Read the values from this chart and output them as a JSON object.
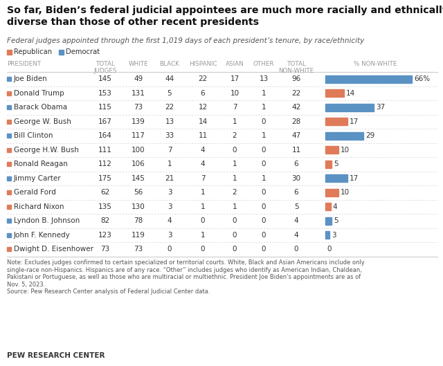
{
  "title": "So far, Biden’s federal judicial appointees are much more racially and ethnically\ndiverse than those of other recent presidents",
  "subtitle": "Federal judges appointed through the first 1,019 days of each president’s tenure, by race/ethnicity",
  "note": "Note: Excludes judges confirmed to certain specialized or territorial courts. White, Black and Asian Americans include only\nsingle-race non-Hispanics. Hispanics are of any race. “Other” includes judges who identify as American Indian, Chaldean,\nPakistani or Portuguese, as well as those who are multiracial or multiethnic. President Joe Biden’s appointments are as of\nNov. 5, 2023.",
  "source": "Source: Pew Research Center analysis of Federal Judicial Center data.",
  "footer": "PEW RESEARCH CENTER",
  "presidents": [
    {
      "name": "Joe Biden",
      "party": "D",
      "total": 145,
      "white": 49,
      "black": 44,
      "hispanic": 22,
      "asian": 17,
      "other": 13,
      "total_nw": 96,
      "pct_nw": 66
    },
    {
      "name": "Donald Trump",
      "party": "R",
      "total": 153,
      "white": 131,
      "black": 5,
      "hispanic": 6,
      "asian": 10,
      "other": 1,
      "total_nw": 22,
      "pct_nw": 14
    },
    {
      "name": "Barack Obama",
      "party": "D",
      "total": 115,
      "white": 73,
      "black": 22,
      "hispanic": 12,
      "asian": 7,
      "other": 1,
      "total_nw": 42,
      "pct_nw": 37
    },
    {
      "name": "George W. Bush",
      "party": "R",
      "total": 167,
      "white": 139,
      "black": 13,
      "hispanic": 14,
      "asian": 1,
      "other": 0,
      "total_nw": 28,
      "pct_nw": 17
    },
    {
      "name": "Bill Clinton",
      "party": "D",
      "total": 164,
      "white": 117,
      "black": 33,
      "hispanic": 11,
      "asian": 2,
      "other": 1,
      "total_nw": 47,
      "pct_nw": 29
    },
    {
      "name": "George H.W. Bush",
      "party": "R",
      "total": 111,
      "white": 100,
      "black": 7,
      "hispanic": 4,
      "asian": 0,
      "other": 0,
      "total_nw": 11,
      "pct_nw": 10
    },
    {
      "name": "Ronald Reagan",
      "party": "R",
      "total": 112,
      "white": 106,
      "black": 1,
      "hispanic": 4,
      "asian": 1,
      "other": 0,
      "total_nw": 6,
      "pct_nw": 5
    },
    {
      "name": "Jimmy Carter",
      "party": "D",
      "total": 175,
      "white": 145,
      "black": 21,
      "hispanic": 7,
      "asian": 1,
      "other": 1,
      "total_nw": 30,
      "pct_nw": 17
    },
    {
      "name": "Gerald Ford",
      "party": "R",
      "total": 62,
      "white": 56,
      "black": 3,
      "hispanic": 1,
      "asian": 2,
      "other": 0,
      "total_nw": 6,
      "pct_nw": 10
    },
    {
      "name": "Richard Nixon",
      "party": "R",
      "total": 135,
      "white": 130,
      "black": 3,
      "hispanic": 1,
      "asian": 1,
      "other": 0,
      "total_nw": 5,
      "pct_nw": 4
    },
    {
      "name": "Lyndon B. Johnson",
      "party": "D",
      "total": 82,
      "white": 78,
      "black": 4,
      "hispanic": 0,
      "asian": 0,
      "other": 0,
      "total_nw": 4,
      "pct_nw": 5
    },
    {
      "name": "John F. Kennedy",
      "party": "D",
      "total": 123,
      "white": 119,
      "black": 3,
      "hispanic": 1,
      "asian": 0,
      "other": 0,
      "total_nw": 4,
      "pct_nw": 3
    },
    {
      "name": "Dwight D. Eisenhower",
      "party": "R",
      "total": 73,
      "white": 73,
      "black": 0,
      "hispanic": 0,
      "asian": 0,
      "other": 0,
      "total_nw": 0,
      "pct_nw": 0
    }
  ],
  "dem_color": "#5b92c4",
  "rep_color": "#e07b5a",
  "bg_color": "#ffffff",
  "header_color": "#999999",
  "text_color": "#333333",
  "max_bar_pct": 66
}
